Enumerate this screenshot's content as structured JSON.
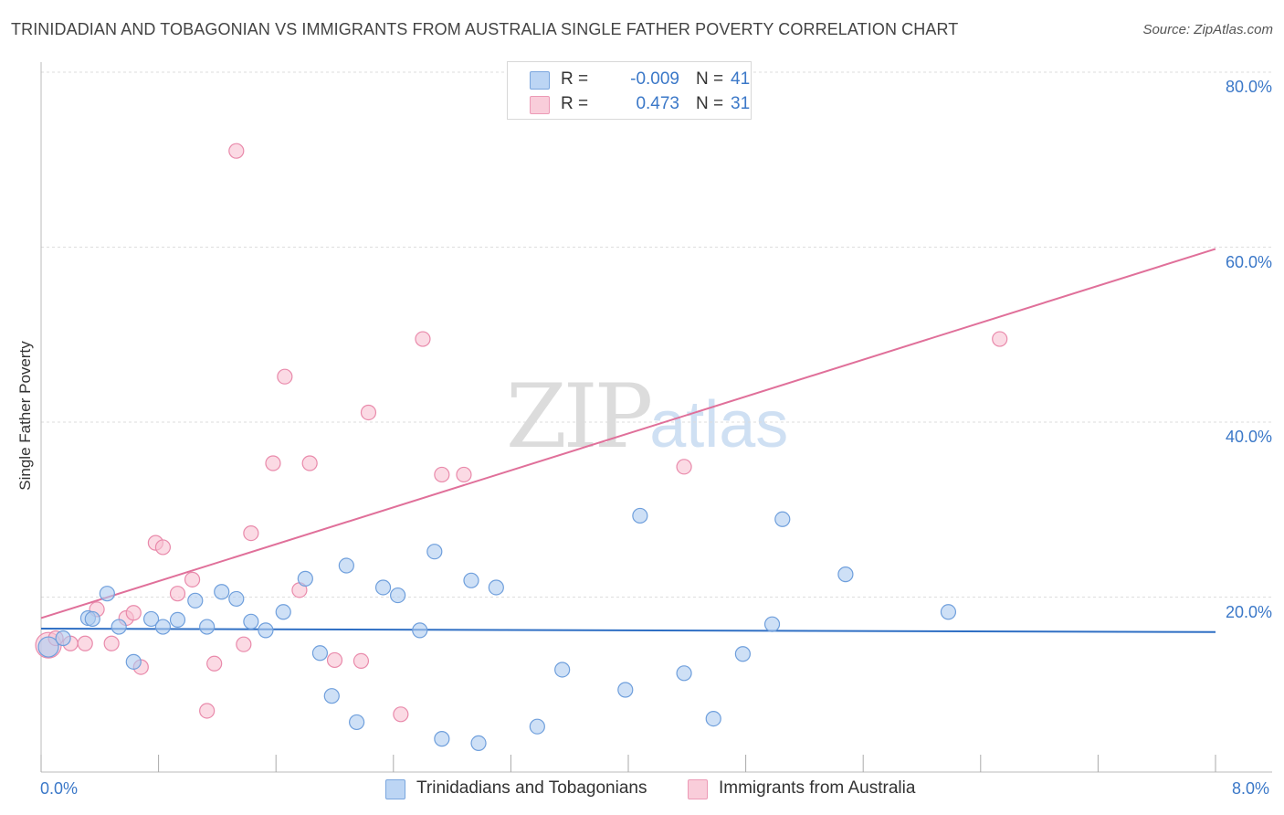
{
  "title": "TRINIDADIAN AND TOBAGONIAN VS IMMIGRANTS FROM AUSTRALIA SINGLE FATHER POVERTY CORRELATION CHART",
  "source": "Source: ZipAtlas.com",
  "watermark": {
    "zip": "ZIP",
    "atlas": "atlas"
  },
  "legend": {
    "r_label": "R =",
    "n_label": "N =",
    "rows": [
      {
        "r": "-0.009",
        "n": "41"
      },
      {
        "r": "0.473",
        "n": "31"
      }
    ]
  },
  "bottom_legend": [
    "Trinidadians and Tobagonians",
    "Immigrants from Australia"
  ],
  "colors": {
    "blue_fill": "#aecbf0",
    "blue_stroke": "#6f9fdc",
    "blue_line": "#2f6fc4",
    "pink_fill": "#f8c1d2",
    "pink_stroke": "#e98aab",
    "pink_line": "#e0709a",
    "axis_text": "#3b78c8",
    "grid": "#dddddd"
  },
  "chart_data": {
    "type": "scatter",
    "title": "TRINIDADIAN AND TOBAGONIAN VS IMMIGRANTS FROM AUSTRALIA SINGLE FATHER POVERTY CORRELATION CHART",
    "xlabel": "",
    "ylabel": "Single Father Poverty",
    "xlim": [
      0,
      8
    ],
    "ylim": [
      0,
      80
    ],
    "x_tick_labels": [
      "0.0%",
      "8.0%"
    ],
    "y_tick_labels": [
      "20.0%",
      "40.0%",
      "60.0%",
      "80.0%"
    ],
    "y_ticks": [
      20,
      40,
      60,
      80
    ],
    "grid": true,
    "legend_position": "top-center",
    "series": [
      {
        "name": "Trinidadians and Tobagonians",
        "color": "#aecbf0",
        "r": -0.009,
        "n": 41,
        "trend": {
          "x": [
            0,
            8
          ],
          "y": [
            16.4,
            16.0
          ]
        },
        "points": [
          [
            0.05,
            14.3
          ],
          [
            0.15,
            15.3
          ],
          [
            0.32,
            17.6
          ],
          [
            0.35,
            17.5
          ],
          [
            0.45,
            20.4
          ],
          [
            0.53,
            16.6
          ],
          [
            0.63,
            12.6
          ],
          [
            0.75,
            17.5
          ],
          [
            0.83,
            16.6
          ],
          [
            0.93,
            17.4
          ],
          [
            1.05,
            19.6
          ],
          [
            1.13,
            16.6
          ],
          [
            1.23,
            20.6
          ],
          [
            1.33,
            19.8
          ],
          [
            1.43,
            17.2
          ],
          [
            1.53,
            16.2
          ],
          [
            1.65,
            18.3
          ],
          [
            1.8,
            22.1
          ],
          [
            1.9,
            13.6
          ],
          [
            1.98,
            8.7
          ],
          [
            2.08,
            23.6
          ],
          [
            2.15,
            5.7
          ],
          [
            2.33,
            21.1
          ],
          [
            2.43,
            20.2
          ],
          [
            2.58,
            16.2
          ],
          [
            2.68,
            25.2
          ],
          [
            2.73,
            3.8
          ],
          [
            2.93,
            21.9
          ],
          [
            2.98,
            3.3
          ],
          [
            3.1,
            21.1
          ],
          [
            3.38,
            5.2
          ],
          [
            3.55,
            11.7
          ],
          [
            3.98,
            9.4
          ],
          [
            4.08,
            29.3
          ],
          [
            4.38,
            11.3
          ],
          [
            4.58,
            6.1
          ],
          [
            4.78,
            13.5
          ],
          [
            4.98,
            16.9
          ],
          [
            5.05,
            28.9
          ],
          [
            5.48,
            22.6
          ],
          [
            6.18,
            18.3
          ]
        ]
      },
      {
        "name": "Immigrants from Australia",
        "color": "#f8c1d2",
        "r": 0.473,
        "n": 31,
        "trend": {
          "x": [
            0,
            8
          ],
          "y": [
            17.6,
            59.8
          ]
        },
        "points": [
          [
            0.05,
            14.5
          ],
          [
            0.1,
            15.3
          ],
          [
            0.2,
            14.7
          ],
          [
            0.3,
            14.7
          ],
          [
            0.38,
            18.6
          ],
          [
            0.48,
            14.7
          ],
          [
            0.58,
            17.6
          ],
          [
            0.63,
            18.2
          ],
          [
            0.68,
            12.0
          ],
          [
            0.78,
            26.2
          ],
          [
            0.83,
            25.7
          ],
          [
            0.93,
            20.4
          ],
          [
            1.03,
            22.0
          ],
          [
            1.13,
            7.0
          ],
          [
            1.18,
            12.4
          ],
          [
            1.33,
            71.0
          ],
          [
            1.38,
            14.6
          ],
          [
            1.43,
            27.3
          ],
          [
            1.58,
            35.3
          ],
          [
            1.66,
            45.2
          ],
          [
            1.76,
            20.8
          ],
          [
            1.83,
            35.3
          ],
          [
            2.0,
            12.8
          ],
          [
            2.18,
            12.7
          ],
          [
            2.23,
            41.1
          ],
          [
            2.45,
            6.6
          ],
          [
            2.6,
            49.5
          ],
          [
            2.73,
            34.0
          ],
          [
            2.88,
            34.0
          ],
          [
            4.38,
            34.9
          ],
          [
            6.53,
            49.5
          ]
        ]
      }
    ]
  }
}
